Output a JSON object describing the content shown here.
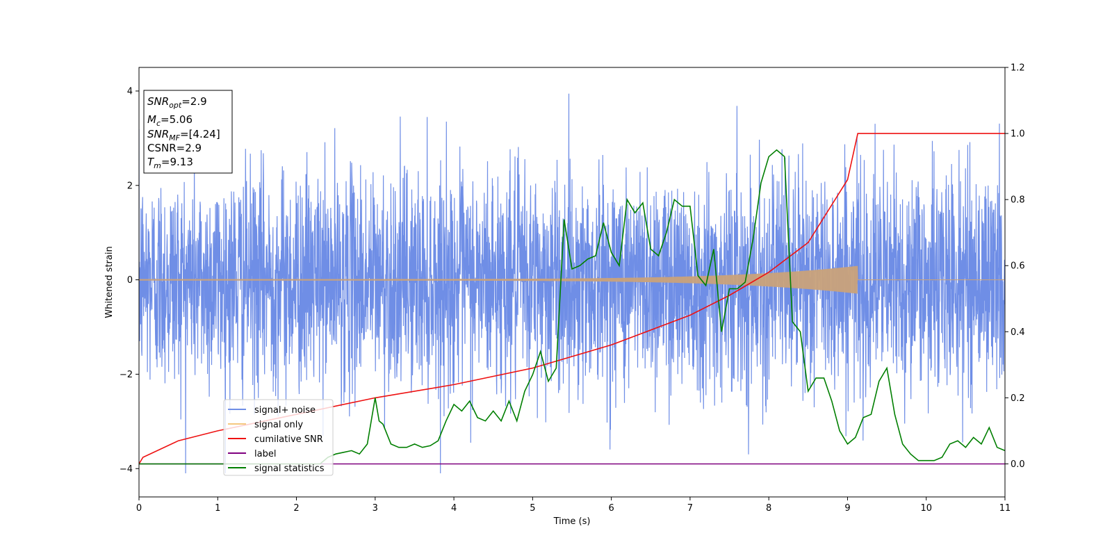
{
  "chart_data": {
    "type": "line",
    "xlabel": "Time (s)",
    "ylabel": "Whitened strain",
    "xlim": [
      0,
      11
    ],
    "ylim_left": [
      -4.6,
      4.5
    ],
    "ylim_right": [
      -0.1,
      1.2
    ],
    "xticks": [
      "0",
      "1",
      "2",
      "3",
      "4",
      "5",
      "6",
      "7",
      "8",
      "9",
      "10",
      "11"
    ],
    "yticks_left": [
      "−4",
      "−2",
      "0",
      "2",
      "4"
    ],
    "yticks_right": [
      "0.0",
      "0.2",
      "0.4",
      "0.6",
      "0.8",
      "1.0",
      "1.2"
    ],
    "grid": false,
    "legend_position": "lower-left",
    "info_box": {
      "snr_opt": {
        "sym": "SNR",
        "sub": "opt",
        "value": "=2.9"
      },
      "mc": {
        "sym": "M",
        "sub": "c",
        "value": "=5.06"
      },
      "snr_mf": {
        "sym": "SNR",
        "sub": "MF",
        "value": "=[4.24]"
      },
      "csnr": {
        "sym": "CSNR",
        "value": "=2.9"
      },
      "tm": {
        "sym": "T",
        "sub": "m",
        "value": "=9.13"
      }
    },
    "series": [
      {
        "name": "signal+ noise",
        "axis": "left",
        "color": "#6f8ee6",
        "description_values": {
          "approx_range": [
            -4.1,
            4.1
          ],
          "typical_envelope": [
            -2.5,
            2.5
          ]
        }
      },
      {
        "name": "signal only",
        "axis": "left",
        "color": "#f5c77e",
        "chirp": {
          "t_end": 9.13,
          "peak_amplitude": 0.28
        }
      },
      {
        "name": "cumilative SNR",
        "axis": "right",
        "color": "#ee1111",
        "x": [
          0,
          0.05,
          0.5,
          1,
          2,
          3,
          4,
          5,
          6,
          7,
          7.5,
          8,
          8.5,
          9,
          9.13,
          11
        ],
        "y": [
          0.0,
          0.02,
          0.07,
          0.1,
          0.15,
          0.2,
          0.24,
          0.29,
          0.36,
          0.45,
          0.51,
          0.58,
          0.67,
          0.86,
          1.0,
          1.0
        ]
      },
      {
        "name": "label",
        "axis": "right",
        "color": "#7f007f",
        "x": [
          0,
          11
        ],
        "y": [
          0.0,
          0.0
        ]
      },
      {
        "name": "signal statistics",
        "axis": "right",
        "color": "#007f00",
        "x": [
          0,
          2.3,
          2.4,
          2.5,
          2.6,
          2.7,
          2.8,
          2.9,
          3.0,
          3.05,
          3.1,
          3.2,
          3.3,
          3.4,
          3.5,
          3.6,
          3.7,
          3.8,
          3.9,
          4.0,
          4.1,
          4.2,
          4.3,
          4.4,
          4.5,
          4.6,
          4.7,
          4.8,
          4.9,
          5.0,
          5.1,
          5.2,
          5.3,
          5.4,
          5.5,
          5.6,
          5.7,
          5.8,
          5.9,
          6.0,
          6.1,
          6.2,
          6.3,
          6.4,
          6.5,
          6.6,
          6.7,
          6.8,
          6.9,
          7.0,
          7.1,
          7.2,
          7.3,
          7.4,
          7.5,
          7.6,
          7.7,
          7.8,
          7.9,
          8.0,
          8.1,
          8.2,
          8.3,
          8.4,
          8.5,
          8.6,
          8.7,
          8.8,
          8.9,
          9.0,
          9.1,
          9.2,
          9.3,
          9.4,
          9.5,
          9.6,
          9.7,
          9.8,
          9.9,
          10.0,
          10.1,
          10.2,
          10.3,
          10.4,
          10.5,
          10.6,
          10.7,
          10.8,
          10.9,
          11.0
        ],
        "y": [
          0.0,
          0.0,
          0.02,
          0.03,
          0.035,
          0.04,
          0.03,
          0.06,
          0.2,
          0.13,
          0.12,
          0.06,
          0.05,
          0.05,
          0.06,
          0.05,
          0.055,
          0.07,
          0.13,
          0.18,
          0.16,
          0.19,
          0.14,
          0.13,
          0.16,
          0.13,
          0.19,
          0.13,
          0.22,
          0.27,
          0.34,
          0.25,
          0.29,
          0.74,
          0.59,
          0.6,
          0.62,
          0.63,
          0.73,
          0.64,
          0.6,
          0.8,
          0.76,
          0.79,
          0.65,
          0.63,
          0.7,
          0.8,
          0.78,
          0.78,
          0.57,
          0.54,
          0.65,
          0.4,
          0.53,
          0.53,
          0.55,
          0.68,
          0.85,
          0.93,
          0.95,
          0.93,
          0.43,
          0.4,
          0.22,
          0.26,
          0.26,
          0.19,
          0.1,
          0.06,
          0.08,
          0.14,
          0.15,
          0.25,
          0.29,
          0.15,
          0.06,
          0.03,
          0.01,
          0.01,
          0.01,
          0.02,
          0.06,
          0.07,
          0.05,
          0.08,
          0.06,
          0.11,
          0.05,
          0.04
        ]
      }
    ]
  }
}
